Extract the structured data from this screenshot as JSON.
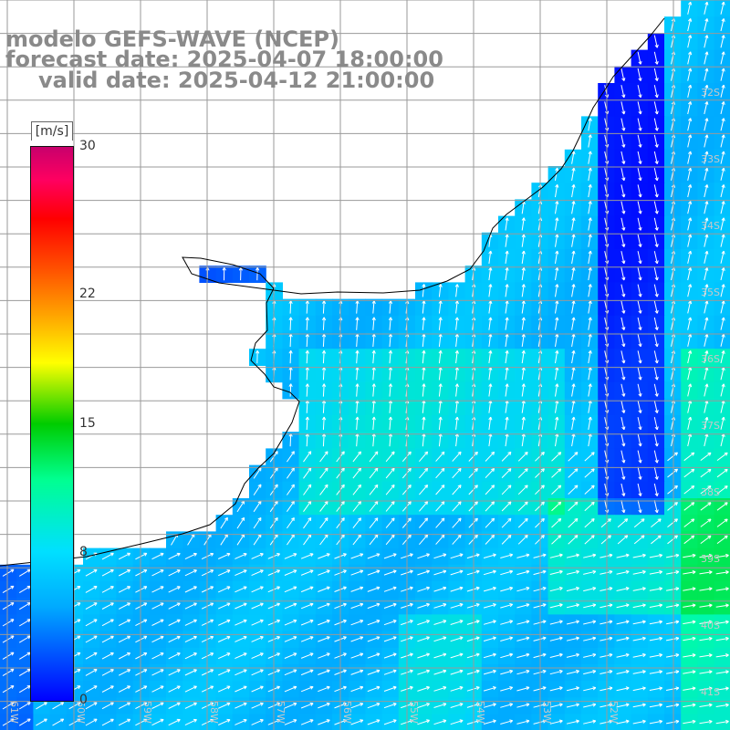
{
  "title": {
    "line1": "modelo GEFS-WAVE (NCEP)",
    "line2": "forecast date: 2025-04-07 18:00:00",
    "line3": "valid date: 2025-04-12 21:00:00"
  },
  "colorbar": {
    "unit": "[m/s]",
    "ticks": [
      {
        "value": 30,
        "label": "30"
      },
      {
        "value": 22,
        "label": "22"
      },
      {
        "value": 15,
        "label": "15"
      },
      {
        "value": 8,
        "label": "8"
      },
      {
        "value": 0,
        "label": "0"
      }
    ],
    "min": 0,
    "max": 30
  },
  "map": {
    "lat_labels": [
      "32S",
      "33S",
      "34S",
      "35S",
      "36S",
      "37S",
      "38S",
      "39S",
      "40S",
      "41S"
    ],
    "lon_labels": [
      "61W",
      "60W",
      "59W",
      "58W",
      "57W",
      "56W",
      "55W",
      "54W",
      "53W",
      "52W"
    ],
    "land_color": "#ffffff",
    "coast_color": "#000000",
    "grid_color": "#9a9a9a"
  }
}
